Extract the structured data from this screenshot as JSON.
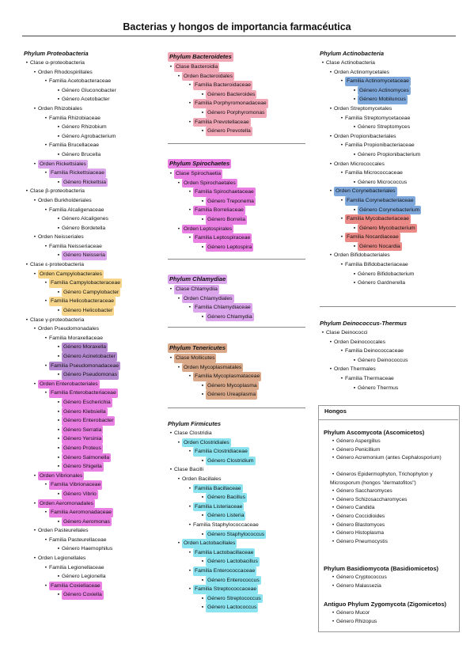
{
  "title": "Bacterias y hongos de importancia farmacéutica",
  "colors": {
    "purple": "#dca6ec",
    "yellow": "#f7d68c",
    "pink": "#f2a7b7",
    "grape": "#b489cf",
    "magenta": "#ea7fe4",
    "tan": "#d9a98a",
    "cyan": "#8be4f0",
    "blue": "#7fa9dc",
    "salmon": "#eb8a86"
  },
  "col1": {
    "title": "Phylum Proteobacteria",
    "items": [
      {
        "l": 0,
        "t": "Clase α-proteobacteria"
      },
      {
        "l": 1,
        "t": "Orden Rhodospirillales"
      },
      {
        "l": 2,
        "t": "Familia Acetobacteraceae"
      },
      {
        "l": 3,
        "t": "Género Gluconobacter"
      },
      {
        "l": 3,
        "t": "Género Acetobacter"
      },
      {
        "l": 1,
        "t": "Orden Rhizobiales"
      },
      {
        "l": 2,
        "t": "Familia Rhizobiaceae"
      },
      {
        "l": 3,
        "t": "Género Rhizobium"
      },
      {
        "l": 3,
        "t": "Género Agrobacterium"
      },
      {
        "l": 2,
        "t": "Familia Brucellaceae"
      },
      {
        "l": 3,
        "t": "Género Brucella"
      },
      {
        "l": 1,
        "t": "Orden Rickettsiales",
        "c": "purple"
      },
      {
        "l": 2,
        "t": "Familia Rickettsiaceae",
        "c": "purple"
      },
      {
        "l": 3,
        "t": "Género Rickettsia",
        "c": "purple"
      },
      {
        "l": 0,
        "t": "Clase β-proteobacteria"
      },
      {
        "l": 1,
        "t": "Orden Burkholderiales"
      },
      {
        "l": 2,
        "t": "Familia Alcaligenaceae"
      },
      {
        "l": 3,
        "t": "Género Alcaligenes"
      },
      {
        "l": 3,
        "t": "Género Bordetella"
      },
      {
        "l": 1,
        "t": "Orden Neisseriales"
      },
      {
        "l": 2,
        "t": "Familia Neisseriaceae"
      },
      {
        "l": 3,
        "t": "Género Neisseria",
        "c": "purple"
      },
      {
        "l": 0,
        "t": "Clase ε-proteobacteria"
      },
      {
        "l": 1,
        "t": "Orden Campylobacterales",
        "c": "yellow"
      },
      {
        "l": 2,
        "t": "Familia Campylobacteraceae",
        "c": "yellow"
      },
      {
        "l": 3,
        "t": "Género Campylobacter",
        "c": "yellow"
      },
      {
        "l": 2,
        "t": "Familia Helicobacteraceae",
        "c": "yellow"
      },
      {
        "l": 3,
        "t": "Género Helicobacter",
        "c": "yellow"
      },
      {
        "l": 0,
        "t": "Clase γ-proteobacteria"
      },
      {
        "l": 1,
        "t": "Orden Pseudomonadales"
      },
      {
        "l": 2,
        "t": "Familia Moraxellaceae"
      },
      {
        "l": 3,
        "t": "Género Moraxella",
        "c": "grape"
      },
      {
        "l": 3,
        "t": "Género Acinetobacter",
        "c": "grape"
      },
      {
        "l": 2,
        "t": "Familia Pseudomonadaceae",
        "c": "grape"
      },
      {
        "l": 3,
        "t": "Género Pseudomonas",
        "c": "grape"
      },
      {
        "l": 1,
        "t": "Orden Enterobacteriales",
        "c": "magenta"
      },
      {
        "l": 2,
        "t": "Familia Enterobacteriaceae",
        "c": "magenta"
      },
      {
        "l": 3,
        "t": "Género Escherichia",
        "c": "magenta"
      },
      {
        "l": 3,
        "t": "Género Klebsiella",
        "c": "magenta"
      },
      {
        "l": 3,
        "t": "Género Enterobacter",
        "c": "magenta"
      },
      {
        "l": 3,
        "t": "Género Serratia",
        "c": "magenta"
      },
      {
        "l": 3,
        "t": "Género Yersinia",
        "c": "magenta"
      },
      {
        "l": 3,
        "t": "Género Proteus",
        "c": "magenta"
      },
      {
        "l": 3,
        "t": "Género Salmonella",
        "c": "magenta"
      },
      {
        "l": 3,
        "t": "Género Shigella",
        "c": "magenta"
      },
      {
        "l": 1,
        "t": "Orden Vibrionales",
        "c": "magenta"
      },
      {
        "l": 2,
        "t": "Familia Vibrionaceae",
        "c": "magenta"
      },
      {
        "l": 3,
        "t": "Género Vibrio",
        "c": "magenta"
      },
      {
        "l": 1,
        "t": "Orden Aeromonadales",
        "c": "magenta"
      },
      {
        "l": 2,
        "t": "Familia Aeromonadaceae",
        "c": "magenta"
      },
      {
        "l": 3,
        "t": "Género Aeromonas",
        "c": "magenta"
      },
      {
        "l": 1,
        "t": "Orden Pasteurellales"
      },
      {
        "l": 2,
        "t": "Familia Pasteurellaceae"
      },
      {
        "l": 3,
        "t": "Género Haemophilus"
      },
      {
        "l": 1,
        "t": "Orden Legionellales"
      },
      {
        "l": 2,
        "t": "Familia Legionellaceae"
      },
      {
        "l": 3,
        "t": "Género Legionella"
      },
      {
        "l": 2,
        "t": "Familia Coxiellaceae",
        "c": "magenta"
      },
      {
        "l": 3,
        "t": "Género Coxiella",
        "c": "magenta"
      }
    ]
  },
  "bacteroidetes": {
    "title": "Phylum Bacteroidetes",
    "title_color": "pink",
    "items": [
      {
        "l": 0,
        "t": "Clase Bacteroidia",
        "c": "pink"
      },
      {
        "l": 1,
        "t": "Orden Bacteroidales",
        "c": "pink"
      },
      {
        "l": 2,
        "t": "Familia Bacteroidaceae",
        "c": "pink"
      },
      {
        "l": 3,
        "t": "Género Bacteroides",
        "c": "pink"
      },
      {
        "l": 2,
        "t": "Familia Porphyromonadaceae",
        "c": "pink"
      },
      {
        "l": 3,
        "t": "Género Porphyromonas",
        "c": "pink"
      },
      {
        "l": 2,
        "t": "Familia Prevotellaceae",
        "c": "pink"
      },
      {
        "l": 3,
        "t": "Género Prevotella",
        "c": "pink"
      }
    ]
  },
  "spirochaetes": {
    "title": "Phylum Spirochaetes",
    "title_color": "magenta",
    "items": [
      {
        "l": 0,
        "t": "Clase Spirochaetia",
        "c": "magenta"
      },
      {
        "l": 1,
        "t": "Orden Spirochaetales",
        "c": "magenta"
      },
      {
        "l": 2,
        "t": "Familia Spirochaetaceae",
        "c": "magenta"
      },
      {
        "l": 3,
        "t": "Género Treponema",
        "c": "magenta"
      },
      {
        "l": 2,
        "t": "Familia Borreliaceae",
        "c": "magenta"
      },
      {
        "l": 3,
        "t": "Género Borrelia",
        "c": "magenta"
      },
      {
        "l": 1,
        "t": "Orden Leptospirales",
        "c": "magenta"
      },
      {
        "l": 2,
        "t": "Familia Leptospiraceae",
        "c": "magenta"
      },
      {
        "l": 3,
        "t": "Género Leptospira",
        "c": "magenta"
      }
    ]
  },
  "chlamydiae": {
    "title": "Phylum Chlamydiae",
    "title_color": "purple",
    "items": [
      {
        "l": 0,
        "t": "Clase Chlamydiia",
        "c": "purple"
      },
      {
        "l": 1,
        "t": "Orden Chlamydiales",
        "c": "purple"
      },
      {
        "l": 2,
        "t": "Familia Chlamydiaceae",
        "c": "purple"
      },
      {
        "l": 3,
        "t": "Género Chlamydia",
        "c": "purple"
      }
    ]
  },
  "tenericutes": {
    "title": "Phylum Tenericutes",
    "title_color": "tan",
    "items": [
      {
        "l": 0,
        "t": "Clase Mollicutes",
        "c": "tan"
      },
      {
        "l": 1,
        "t": "Orden Mycoplasmatales",
        "c": "tan"
      },
      {
        "l": 2,
        "t": "Familia Mycoplasmataceae",
        "c": "tan"
      },
      {
        "l": 3,
        "t": "Género Mycoplasma",
        "c": "tan"
      },
      {
        "l": 3,
        "t": "Género Ureaplasma",
        "c": "tan"
      }
    ]
  },
  "firmicutes": {
    "title": "Phylum Firmicutes",
    "items": [
      {
        "l": 0,
        "t": "Clase Clostridia"
      },
      {
        "l": 1,
        "t": "Orden Clostridiales",
        "c": "cyan"
      },
      {
        "l": 2,
        "t": "Familia Clostridiaceae",
        "c": "cyan"
      },
      {
        "l": 3,
        "t": "Género Clostridium",
        "c": "cyan"
      },
      {
        "l": 0,
        "t": "Clase Bacilli"
      },
      {
        "l": 1,
        "t": "Orden Bacillales"
      },
      {
        "l": 2,
        "t": "Familia Bacillaceae",
        "c": "cyan"
      },
      {
        "l": 3,
        "t": "Género Bacillus",
        "c": "cyan"
      },
      {
        "l": 2,
        "t": "Familia Listeriaceae",
        "c": "cyan"
      },
      {
        "l": 3,
        "t": "Género Listeria",
        "c": "cyan"
      },
      {
        "l": 2,
        "t": "Familia Staphylococcaceae"
      },
      {
        "l": 3,
        "t": "Género Staphylococcus",
        "c": "cyan"
      },
      {
        "l": 1,
        "t": "Orden Lactobacillales",
        "c": "cyan"
      },
      {
        "l": 2,
        "t": "Familia Lactobacillaceae",
        "c": "cyan"
      },
      {
        "l": 3,
        "t": "Género Lactobacillus",
        "c": "cyan"
      },
      {
        "l": 2,
        "t": "Familia Enterococcaceae",
        "c": "cyan"
      },
      {
        "l": 3,
        "t": "Género Enterococcus",
        "c": "cyan"
      },
      {
        "l": 2,
        "t": "Familia Streptococcaceae",
        "c": "cyan"
      },
      {
        "l": 3,
        "t": "Género Streptococcus",
        "c": "cyan"
      },
      {
        "l": 3,
        "t": "Género Lactococcus",
        "c": "cyan"
      }
    ]
  },
  "actinobacteria": {
    "title": "Phylum Actinobacteria",
    "items": [
      {
        "l": 0,
        "t": "Clase Actinobacteria"
      },
      {
        "l": 1,
        "t": "Orden Actinomycetales"
      },
      {
        "l": 2,
        "t": "Familia Actinomycetaceae",
        "c": "blue"
      },
      {
        "l": 3,
        "t": "Género Actinomyces",
        "c": "blue"
      },
      {
        "l": 3,
        "t": "Género Mobiluncus",
        "c": "blue"
      },
      {
        "l": 1,
        "t": "Orden Streptomycetales"
      },
      {
        "l": 2,
        "t": "Familia Streptomycetaceae"
      },
      {
        "l": 3,
        "t": "Género Streptomyces"
      },
      {
        "l": 1,
        "t": "Orden Propionibacteriales"
      },
      {
        "l": 2,
        "t": "Familia Propionibacteriaceae"
      },
      {
        "l": 3,
        "t": "Género Propionibacterium"
      },
      {
        "l": 1,
        "t": "Orden Micrococcales"
      },
      {
        "l": 2,
        "t": "Familia Micrococcaceae"
      },
      {
        "l": 3,
        "t": "Género Micrococcus"
      },
      {
        "l": 1,
        "t": "Orden Corynebacteriales",
        "c": "blue"
      },
      {
        "l": 2,
        "t": "Familia Corynebacteriaceae",
        "c": "blue"
      },
      {
        "l": 3,
        "t": "Género Corynebacterium",
        "c": "blue"
      },
      {
        "l": 2,
        "t": "Familia Mycobacteriaceae",
        "c": "salmon"
      },
      {
        "l": 3,
        "t": "Género Mycobacterium",
        "c": "salmon"
      },
      {
        "l": 2,
        "t": "Familia Nocardiaceae",
        "c": "salmon"
      },
      {
        "l": 3,
        "t": "Género Nocardia",
        "c": "salmon"
      },
      {
        "l": 1,
        "t": "Orden Bifidobacteriales"
      },
      {
        "l": 2,
        "t": "Familia Bifidobacteriaceae"
      },
      {
        "l": 3,
        "t": "Género Bifidobacterium"
      },
      {
        "l": 3,
        "t": "Género Gardnerella"
      }
    ]
  },
  "deinococcus": {
    "title": "Phylum Deinococcus-Thermus",
    "items": [
      {
        "l": 0,
        "t": "Clase Deinococci"
      },
      {
        "l": 1,
        "t": "Orden Deinococcales"
      },
      {
        "l": 2,
        "t": "Familia Deinococcaceae"
      },
      {
        "l": 3,
        "t": "Género Deinococcus"
      },
      {
        "l": 1,
        "t": "Orden Thermales"
      },
      {
        "l": 2,
        "t": "Familia Thermaceae"
      },
      {
        "l": 3,
        "t": "Género Thermus"
      }
    ]
  },
  "hongos": {
    "heading": "Hongos",
    "ascomycota": {
      "title": "Phylum Ascomycota (Ascomicetos)",
      "items": [
        {
          "t": "Género Aspergillus"
        },
        {
          "t": "Género Penicillium"
        },
        {
          "t": "Género Acremonium (antes Cephalosporium)",
          "w": 2
        },
        {
          "t": "Géneros Epidermophyton, Trichophyton y Microsporum (hongos \"dermatofitos\")",
          "w": 2
        },
        {
          "t": "Género Saccharomyces"
        },
        {
          "t": "Género Schizosaccharomyces"
        },
        {
          "t": "Género Candida"
        },
        {
          "t": "Género Coccidioides"
        },
        {
          "t": "Género Blastomyces"
        },
        {
          "t": "Género Histoplasma"
        },
        {
          "t": "Género Pneumocystis"
        }
      ]
    },
    "basidiomycota": {
      "title": "Phylum Basidiomycota (Basidiomicetos)",
      "items": [
        {
          "t": "Género Cryptococcus"
        },
        {
          "t": "Género Malassezia"
        }
      ]
    },
    "zygomycota": {
      "title": "Antiguo Phylum Zygomycota (Zigomicetos)",
      "items": [
        {
          "t": "Género Mucor"
        },
        {
          "t": "Género Rhizopus"
        }
      ]
    }
  }
}
